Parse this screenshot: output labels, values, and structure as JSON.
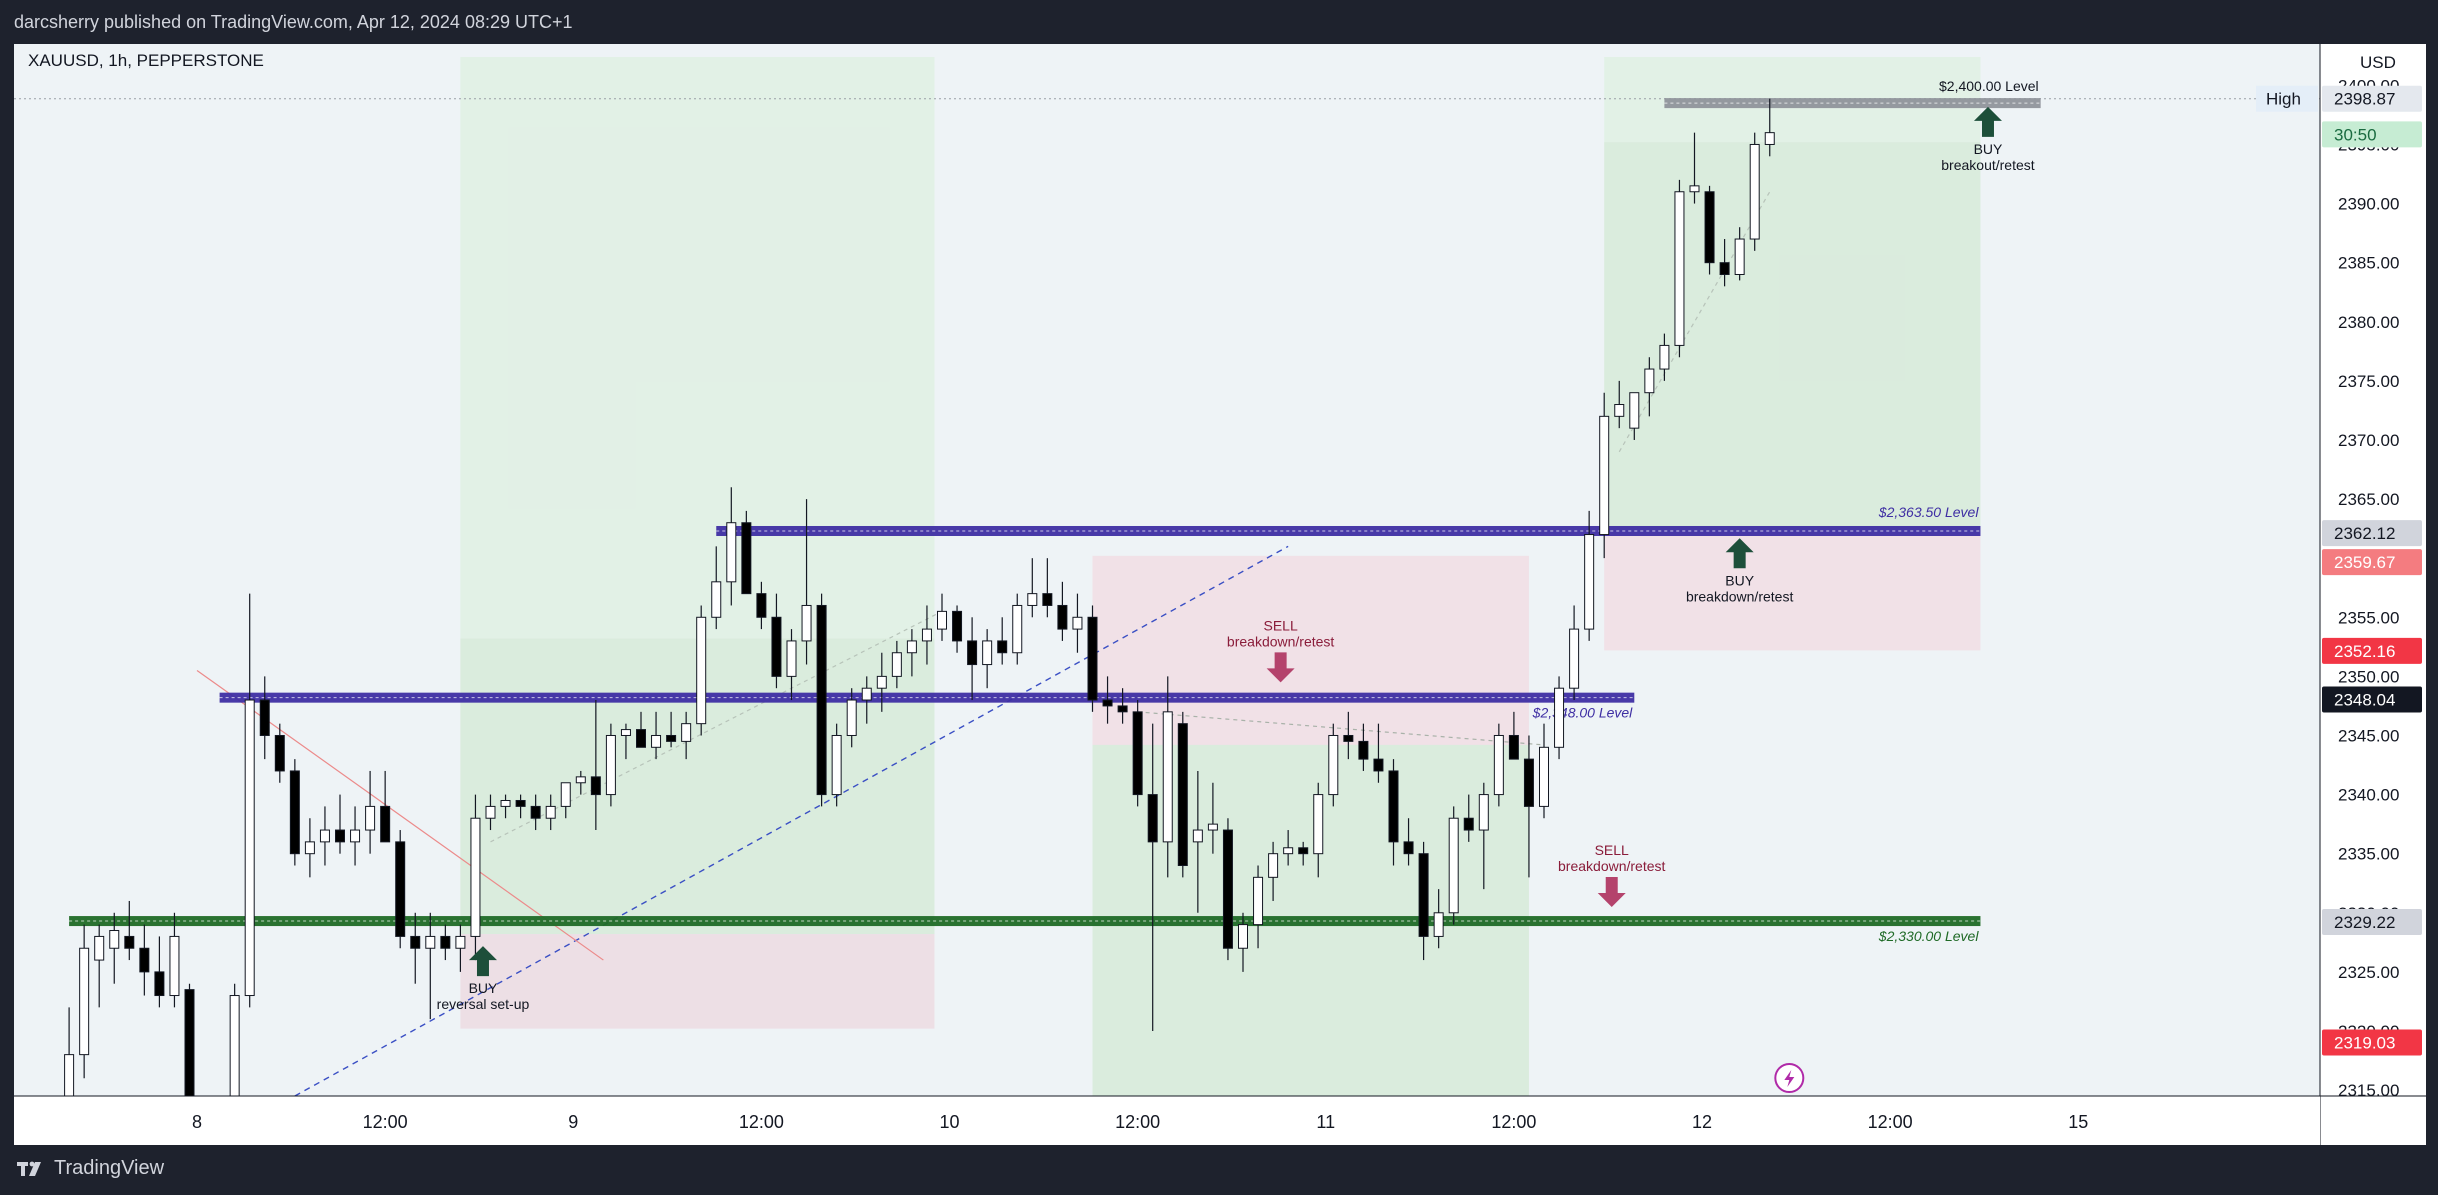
{
  "page": {
    "publisher_line": "darcsherry published on TradingView.com, Apr 12, 2024 08:29 UTC+1",
    "brand_name": "TradingView",
    "brand_icon": "tradingview-logo-icon",
    "lightning_icon": "lightning-icon"
  },
  "chart_data": {
    "type": "candlestick",
    "symbol_line": "XAUUSD, 1h, PEPPERSTONE",
    "currency_label": "USD",
    "ylim": [
      2314.5,
      2403.5
    ],
    "xlim": [
      0,
      154
    ],
    "y_ticks": [
      "2400.00",
      "2395.00",
      "2390.00",
      "2385.00",
      "2380.00",
      "2375.00",
      "2370.00",
      "2365.00",
      "2360.00",
      "2355.00",
      "2350.00",
      "2345.00",
      "2340.00",
      "2335.00",
      "2330.00",
      "2325.00",
      "2320.00",
      "2315.00"
    ],
    "x_ticks": [
      {
        "label": "8",
        "x": 10.5
      },
      {
        "label": "12:00",
        "x": 23
      },
      {
        "label": "9",
        "x": 35.5
      },
      {
        "label": "12:00",
        "x": 48
      },
      {
        "label": "10",
        "x": 60.5
      },
      {
        "label": "12:00",
        "x": 73
      },
      {
        "label": "11",
        "x": 85.5
      },
      {
        "label": "12:00",
        "x": 98
      },
      {
        "label": "12",
        "x": 110.5
      },
      {
        "label": "12:00",
        "x": 123
      },
      {
        "label": "15",
        "x": 135.5
      }
    ],
    "candles": [
      {
        "x": 2,
        "o": 2311,
        "h": 2322,
        "l": 2310,
        "c": 2318
      },
      {
        "x": 3,
        "o": 2318,
        "h": 2329,
        "l": 2316,
        "c": 2327
      },
      {
        "x": 4,
        "o": 2326,
        "h": 2329,
        "l": 2322,
        "c": 2328
      },
      {
        "x": 5,
        "o": 2327,
        "h": 2330,
        "l": 2324,
        "c": 2328.5
      },
      {
        "x": 6,
        "o": 2328,
        "h": 2331,
        "l": 2326,
        "c": 2327
      },
      {
        "x": 7,
        "o": 2327,
        "h": 2329,
        "l": 2323,
        "c": 2325
      },
      {
        "x": 8,
        "o": 2325,
        "h": 2328,
        "l": 2322,
        "c": 2323
      },
      {
        "x": 9,
        "o": 2323,
        "h": 2330,
        "l": 2322,
        "c": 2328
      },
      {
        "x": 10,
        "o": 2323.5,
        "h": 2324,
        "l": 2309,
        "c": 2310
      },
      {
        "x": 13,
        "o": 2313,
        "h": 2324,
        "l": 2312,
        "c": 2323
      },
      {
        "x": 14,
        "o": 2323,
        "h": 2357,
        "l": 2322,
        "c": 2348
      },
      {
        "x": 15,
        "o": 2348,
        "h": 2350,
        "l": 2343,
        "c": 2345
      },
      {
        "x": 16,
        "o": 2345,
        "h": 2346,
        "l": 2341,
        "c": 2342
      },
      {
        "x": 17,
        "o": 2342,
        "h": 2343,
        "l": 2334,
        "c": 2335
      },
      {
        "x": 18,
        "o": 2335,
        "h": 2338,
        "l": 2333,
        "c": 2336
      },
      {
        "x": 19,
        "o": 2336,
        "h": 2339,
        "l": 2334,
        "c": 2337
      },
      {
        "x": 20,
        "o": 2337,
        "h": 2340,
        "l": 2335,
        "c": 2336
      },
      {
        "x": 21,
        "o": 2336,
        "h": 2339,
        "l": 2334,
        "c": 2337
      },
      {
        "x": 22,
        "o": 2337,
        "h": 2342,
        "l": 2335,
        "c": 2339
      },
      {
        "x": 23,
        "o": 2339,
        "h": 2342,
        "l": 2336,
        "c": 2336
      },
      {
        "x": 24,
        "o": 2336,
        "h": 2337,
        "l": 2327,
        "c": 2328
      },
      {
        "x": 25,
        "o": 2328,
        "h": 2330,
        "l": 2324,
        "c": 2327
      },
      {
        "x": 26,
        "o": 2327,
        "h": 2330,
        "l": 2321,
        "c": 2328
      },
      {
        "x": 27,
        "o": 2328,
        "h": 2329,
        "l": 2326,
        "c": 2327
      },
      {
        "x": 28,
        "o": 2327,
        "h": 2329,
        "l": 2325,
        "c": 2328
      },
      {
        "x": 29,
        "o": 2328,
        "h": 2340,
        "l": 2326,
        "c": 2338
      },
      {
        "x": 30,
        "o": 2338,
        "h": 2340,
        "l": 2337,
        "c": 2339
      },
      {
        "x": 31,
        "o": 2339,
        "h": 2340,
        "l": 2338,
        "c": 2339.5
      },
      {
        "x": 32,
        "o": 2339.5,
        "h": 2340,
        "l": 2338,
        "c": 2339
      },
      {
        "x": 33,
        "o": 2339,
        "h": 2340,
        "l": 2337,
        "c": 2338
      },
      {
        "x": 34,
        "o": 2338,
        "h": 2340,
        "l": 2337,
        "c": 2339
      },
      {
        "x": 35,
        "o": 2339,
        "h": 2341,
        "l": 2338,
        "c": 2341
      },
      {
        "x": 36,
        "o": 2341,
        "h": 2342,
        "l": 2340,
        "c": 2341.5
      },
      {
        "x": 37,
        "o": 2341.5,
        "h": 2348,
        "l": 2337,
        "c": 2340
      },
      {
        "x": 38,
        "o": 2340,
        "h": 2346,
        "l": 2339,
        "c": 2345
      },
      {
        "x": 39,
        "o": 2345,
        "h": 2346,
        "l": 2343,
        "c": 2345.5
      },
      {
        "x": 40,
        "o": 2345.5,
        "h": 2347,
        "l": 2344,
        "c": 2344
      },
      {
        "x": 41,
        "o": 2344,
        "h": 2347,
        "l": 2343,
        "c": 2345
      },
      {
        "x": 42,
        "o": 2345,
        "h": 2347,
        "l": 2344,
        "c": 2344.5
      },
      {
        "x": 43,
        "o": 2344.5,
        "h": 2347,
        "l": 2343,
        "c": 2346
      },
      {
        "x": 44,
        "o": 2346,
        "h": 2356,
        "l": 2345,
        "c": 2355
      },
      {
        "x": 45,
        "o": 2355,
        "h": 2361,
        "l": 2354,
        "c": 2358
      },
      {
        "x": 46,
        "o": 2358,
        "h": 2366,
        "l": 2356,
        "c": 2363
      },
      {
        "x": 47,
        "o": 2363,
        "h": 2364,
        "l": 2357,
        "c": 2357
      },
      {
        "x": 48,
        "o": 2357,
        "h": 2358,
        "l": 2354,
        "c": 2355
      },
      {
        "x": 49,
        "o": 2355,
        "h": 2357,
        "l": 2349,
        "c": 2350
      },
      {
        "x": 50,
        "o": 2350,
        "h": 2354,
        "l": 2348,
        "c": 2353
      },
      {
        "x": 51,
        "o": 2353,
        "h": 2365,
        "l": 2351,
        "c": 2356
      },
      {
        "x": 52,
        "o": 2356,
        "h": 2357,
        "l": 2339,
        "c": 2340
      },
      {
        "x": 53,
        "o": 2340,
        "h": 2346,
        "l": 2339,
        "c": 2345
      },
      {
        "x": 54,
        "o": 2345,
        "h": 2349,
        "l": 2344,
        "c": 2348
      },
      {
        "x": 55,
        "o": 2348,
        "h": 2350,
        "l": 2346,
        "c": 2349
      },
      {
        "x": 56,
        "o": 2349,
        "h": 2352,
        "l": 2347,
        "c": 2350
      },
      {
        "x": 57,
        "o": 2350,
        "h": 2353,
        "l": 2349,
        "c": 2352
      },
      {
        "x": 58,
        "o": 2352,
        "h": 2354,
        "l": 2350,
        "c": 2353
      },
      {
        "x": 59,
        "o": 2353,
        "h": 2356,
        "l": 2351,
        "c": 2354
      },
      {
        "x": 60,
        "o": 2354,
        "h": 2357,
        "l": 2353,
        "c": 2355.5
      },
      {
        "x": 61,
        "o": 2355.5,
        "h": 2356,
        "l": 2352,
        "c": 2353
      },
      {
        "x": 62,
        "o": 2353,
        "h": 2355,
        "l": 2348,
        "c": 2351
      },
      {
        "x": 63,
        "o": 2351,
        "h": 2354,
        "l": 2349,
        "c": 2353
      },
      {
        "x": 64,
        "o": 2353,
        "h": 2355,
        "l": 2351,
        "c": 2352
      },
      {
        "x": 65,
        "o": 2352,
        "h": 2357,
        "l": 2351,
        "c": 2356
      },
      {
        "x": 66,
        "o": 2356,
        "h": 2360,
        "l": 2355,
        "c": 2357
      },
      {
        "x": 67,
        "o": 2357,
        "h": 2360,
        "l": 2355,
        "c": 2356
      },
      {
        "x": 68,
        "o": 2356,
        "h": 2358,
        "l": 2353,
        "c": 2354
      },
      {
        "x": 69,
        "o": 2354,
        "h": 2357,
        "l": 2352,
        "c": 2355
      },
      {
        "x": 70,
        "o": 2355,
        "h": 2356,
        "l": 2347,
        "c": 2348
      },
      {
        "x": 71,
        "o": 2348,
        "h": 2350,
        "l": 2346,
        "c": 2347.5
      },
      {
        "x": 72,
        "o": 2347.5,
        "h": 2349,
        "l": 2346,
        "c": 2347
      },
      {
        "x": 73,
        "o": 2347,
        "h": 2348,
        "l": 2339,
        "c": 2340
      },
      {
        "x": 74,
        "o": 2340,
        "h": 2346,
        "l": 2320,
        "c": 2336
      },
      {
        "x": 75,
        "o": 2336,
        "h": 2350,
        "l": 2333,
        "c": 2347
      },
      {
        "x": 76,
        "o": 2346,
        "h": 2347,
        "l": 2333,
        "c": 2334
      },
      {
        "x": 77,
        "o": 2336,
        "h": 2342,
        "l": 2330,
        "c": 2337
      },
      {
        "x": 78,
        "o": 2337,
        "h": 2341,
        "l": 2335,
        "c": 2337.5
      },
      {
        "x": 79,
        "o": 2337,
        "h": 2338,
        "l": 2326,
        "c": 2327
      },
      {
        "x": 80,
        "o": 2327,
        "h": 2330,
        "l": 2325,
        "c": 2329
      },
      {
        "x": 81,
        "o": 2329,
        "h": 2334,
        "l": 2327,
        "c": 2333
      },
      {
        "x": 82,
        "o": 2333,
        "h": 2336,
        "l": 2331,
        "c": 2335
      },
      {
        "x": 83,
        "o": 2335,
        "h": 2337,
        "l": 2334,
        "c": 2335.5
      },
      {
        "x": 84,
        "o": 2335.5,
        "h": 2336,
        "l": 2334,
        "c": 2335
      },
      {
        "x": 85,
        "o": 2335,
        "h": 2341,
        "l": 2333,
        "c": 2340
      },
      {
        "x": 86,
        "o": 2340,
        "h": 2346,
        "l": 2339,
        "c": 2345
      },
      {
        "x": 87,
        "o": 2345,
        "h": 2347,
        "l": 2343,
        "c": 2344.5
      },
      {
        "x": 88,
        "o": 2344.5,
        "h": 2346,
        "l": 2342,
        "c": 2343
      },
      {
        "x": 89,
        "o": 2343,
        "h": 2346,
        "l": 2341,
        "c": 2342
      },
      {
        "x": 90,
        "o": 2342,
        "h": 2343,
        "l": 2334,
        "c": 2336
      },
      {
        "x": 91,
        "o": 2336,
        "h": 2338,
        "l": 2334,
        "c": 2335
      },
      {
        "x": 92,
        "o": 2335,
        "h": 2336,
        "l": 2326,
        "c": 2328
      },
      {
        "x": 93,
        "o": 2328,
        "h": 2332,
        "l": 2327,
        "c": 2330
      },
      {
        "x": 94,
        "o": 2330,
        "h": 2339,
        "l": 2329,
        "c": 2338
      },
      {
        "x": 95,
        "o": 2338,
        "h": 2340,
        "l": 2336,
        "c": 2337
      },
      {
        "x": 96,
        "o": 2337,
        "h": 2341,
        "l": 2332,
        "c": 2340
      },
      {
        "x": 97,
        "o": 2340,
        "h": 2346,
        "l": 2339,
        "c": 2345
      },
      {
        "x": 98,
        "o": 2345,
        "h": 2347,
        "l": 2343,
        "c": 2343
      },
      {
        "x": 99,
        "o": 2343,
        "h": 2345,
        "l": 2333,
        "c": 2339
      },
      {
        "x": 100,
        "o": 2339,
        "h": 2346,
        "l": 2338,
        "c": 2344
      },
      {
        "x": 101,
        "o": 2344,
        "h": 2350,
        "l": 2343,
        "c": 2349
      },
      {
        "x": 102,
        "o": 2349,
        "h": 2356,
        "l": 2348,
        "c": 2354
      },
      {
        "x": 103,
        "o": 2354,
        "h": 2364,
        "l": 2353,
        "c": 2362
      },
      {
        "x": 104,
        "o": 2362,
        "h": 2374,
        "l": 2360,
        "c": 2372
      },
      {
        "x": 105,
        "o": 2372,
        "h": 2375,
        "l": 2371,
        "c": 2373
      },
      {
        "x": 106,
        "o": 2371,
        "h": 2374,
        "l": 2370,
        "c": 2374
      },
      {
        "x": 107,
        "o": 2374,
        "h": 2377,
        "l": 2372,
        "c": 2376
      },
      {
        "x": 108,
        "o": 2376,
        "h": 2379,
        "l": 2375,
        "c": 2378
      },
      {
        "x": 109,
        "o": 2378,
        "h": 2392,
        "l": 2377,
        "c": 2391
      },
      {
        "x": 110,
        "o": 2391,
        "h": 2396,
        "l": 2390,
        "c": 2391.5
      },
      {
        "x": 111,
        "o": 2391,
        "h": 2391.5,
        "l": 2384,
        "c": 2385
      },
      {
        "x": 112,
        "o": 2385,
        "h": 2387,
        "l": 2383,
        "c": 2384
      },
      {
        "x": 113,
        "o": 2384,
        "h": 2388,
        "l": 2383.5,
        "c": 2387
      },
      {
        "x": 114,
        "o": 2387,
        "h": 2396,
        "l": 2386,
        "c": 2395
      },
      {
        "x": 115,
        "o": 2395,
        "h": 2398.87,
        "l": 2394,
        "c": 2396
      }
    ],
    "levels": [
      {
        "name": "$2,400.00 Level",
        "price": 2398.5,
        "x0": 108,
        "x1": 133,
        "color": "#8f949b"
      },
      {
        "name": "$2,363.50 Level",
        "price": 2362.3,
        "x0": 45,
        "x1": 129,
        "color": "#3e2ea3"
      },
      {
        "name": "$2,348.00 Level",
        "price": 2348.2,
        "x0": 12,
        "x1": 106,
        "color": "#3e2ea3"
      },
      {
        "name": "$2,330.00 Level",
        "price": 2329.3,
        "x0": 2,
        "x1": 129,
        "color": "#1f6a26"
      }
    ],
    "zones": [
      {
        "x0": 28,
        "x1": 59.5,
        "y0": 2353.2,
        "y1": 2402.4,
        "color": "#d8eed8",
        "opacity": 0.55
      },
      {
        "x0": 28,
        "x1": 59.5,
        "y0": 2353.2,
        "y1": 2328.2,
        "color": "#d6ead8",
        "opacity": 0.85
      },
      {
        "x0": 28,
        "x1": 59.5,
        "y0": 2328.2,
        "y1": 2320.2,
        "color": "#ecdde3",
        "opacity": 0.9
      },
      {
        "x0": 70,
        "x1": 99,
        "y0": 2360.2,
        "y1": 2344.2,
        "color": "#f1dfe5",
        "opacity": 0.9
      },
      {
        "x0": 70,
        "x1": 99,
        "y0": 2344.2,
        "y1": 2314.5,
        "color": "#d6ead8",
        "opacity": 0.85
      },
      {
        "x0": 104,
        "x1": 129,
        "y0": 2402.4,
        "y1": 2395.2,
        "color": "#d8eed8",
        "opacity": 0.55
      },
      {
        "x0": 104,
        "x1": 129,
        "y0": 2395.2,
        "y1": 2362.2,
        "color": "#d6ead8",
        "opacity": 0.85
      },
      {
        "x0": 104,
        "x1": 129,
        "y0": 2362.2,
        "y1": 2352.2,
        "color": "#f1dfe5",
        "opacity": 0.9
      }
    ],
    "trendlines": [
      {
        "x0": 17,
        "y0": 2314.5,
        "x1": 83,
        "y1": 2361,
        "color": "#3a4fc4",
        "dash": "6,5",
        "width": 1.4
      },
      {
        "x0": 10.5,
        "y0": 2350.5,
        "x1": 37.5,
        "y1": 2326,
        "color": "#ec8a8a",
        "dash": "",
        "width": 1.2
      },
      {
        "x0": 30,
        "y0": 2336,
        "x1": 60,
        "y1": 2355.5,
        "color": "#b7c3b9",
        "dash": "4,4",
        "width": 1.2
      },
      {
        "x0": 73,
        "y0": 2347,
        "x1": 100,
        "y1": 2344.2,
        "color": "#a9b2a9",
        "dash": "4,4",
        "width": 1.2
      },
      {
        "x0": 105,
        "y0": 2369,
        "x1": 115,
        "y1": 2391,
        "color": "#b7c3b9",
        "dash": "4,4",
        "width": 1.2
      }
    ],
    "annotations": [
      {
        "type": "BUY",
        "line1": "BUY",
        "line2": "reversal set-up",
        "x": 29.5,
        "price": 2326,
        "color": "#1d4f3a"
      },
      {
        "type": "SELL",
        "line1": "SELL",
        "line2": "breakdown/retest",
        "x": 82.5,
        "price": 2350,
        "color": "#b4436c"
      },
      {
        "type": "SELL",
        "line1": "SELL",
        "line2": "breakdown/retest",
        "x": 104.5,
        "price": 2331,
        "color": "#b4436c"
      },
      {
        "type": "BUY",
        "line1": "BUY",
        "line2": "breakdown/retest",
        "x": 113,
        "price": 2360.5,
        "color": "#1d4f3a"
      },
      {
        "type": "BUY",
        "line1": "BUY",
        "line2": "breakout/retest",
        "x": 129.5,
        "price": 2397,
        "color": "#1d4f3a"
      }
    ],
    "price_labels": [
      {
        "text": "2398.87",
        "price": 2398.87,
        "bg": "#e4e8ee",
        "fg": "#131722",
        "side_label": "High"
      },
      {
        "text": "30:50",
        "price": 2395.85,
        "bg": "#c6ecd3",
        "fg": "#1a6b40"
      },
      {
        "text": "2362.12",
        "price": 2362.12,
        "bg": "#d1d4dc",
        "fg": "#131722"
      },
      {
        "text": "2359.67",
        "price": 2359.67,
        "bg": "#f47c80",
        "fg": "#ffffff"
      },
      {
        "text": "2352.16",
        "price": 2352.16,
        "bg": "#f23645",
        "fg": "#ffffff"
      },
      {
        "text": "2348.04",
        "price": 2348.04,
        "bg": "#131722",
        "fg": "#ffffff"
      },
      {
        "text": "2329.22",
        "price": 2329.22,
        "bg": "#d1d4dc",
        "fg": "#131722"
      },
      {
        "text": "2319.03",
        "price": 2319.03,
        "bg": "#f23645",
        "fg": "#ffffff"
      }
    ],
    "high_line_price": 2398.87
  }
}
